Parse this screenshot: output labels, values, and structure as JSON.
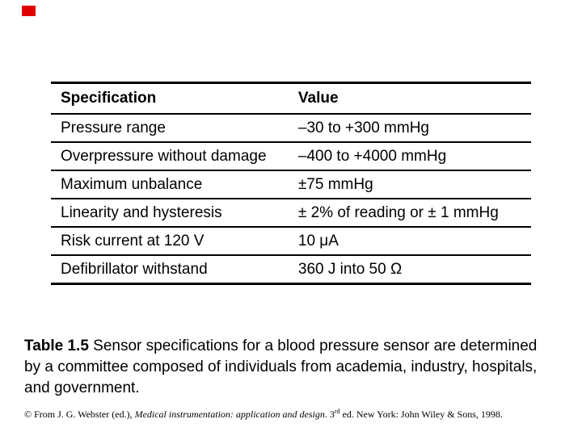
{
  "page": {
    "background": "#ffffff",
    "marker_color": "#e00000"
  },
  "table": {
    "headers": [
      "Specification",
      "Value"
    ],
    "rows": [
      {
        "spec": "Pressure range",
        "value": "–30 to +300 mmHg"
      },
      {
        "spec": "Overpressure without damage",
        "value": "–400 to +4000 mmHg"
      },
      {
        "spec": "Maximum unbalance",
        "value": "±75 mmHg"
      },
      {
        "spec": "Linearity and hysteresis",
        "value": "± 2% of reading or ± 1 mmHg"
      },
      {
        "spec": "Risk current at 120 V",
        "value": "10 μA"
      },
      {
        "spec": "Defibrillator withstand",
        "value": "360 J into 50 Ω"
      }
    ]
  },
  "caption": {
    "label": "Table 1.5",
    "line1_rest": " Sensor specifications for a blood pressure sensor are determined",
    "line2": "by a committee composed of individuals from academia, industry, hospitals,",
    "line3": "and government."
  },
  "footer": {
    "prefix": "© From J. G. Webster (ed.), ",
    "italic_title": "Medical instrumentation: application and design",
    "after_title": ". 3",
    "ordinal_suffix": "rd",
    "rest": " ed. New York: John Wiley & Sons, 1998."
  }
}
